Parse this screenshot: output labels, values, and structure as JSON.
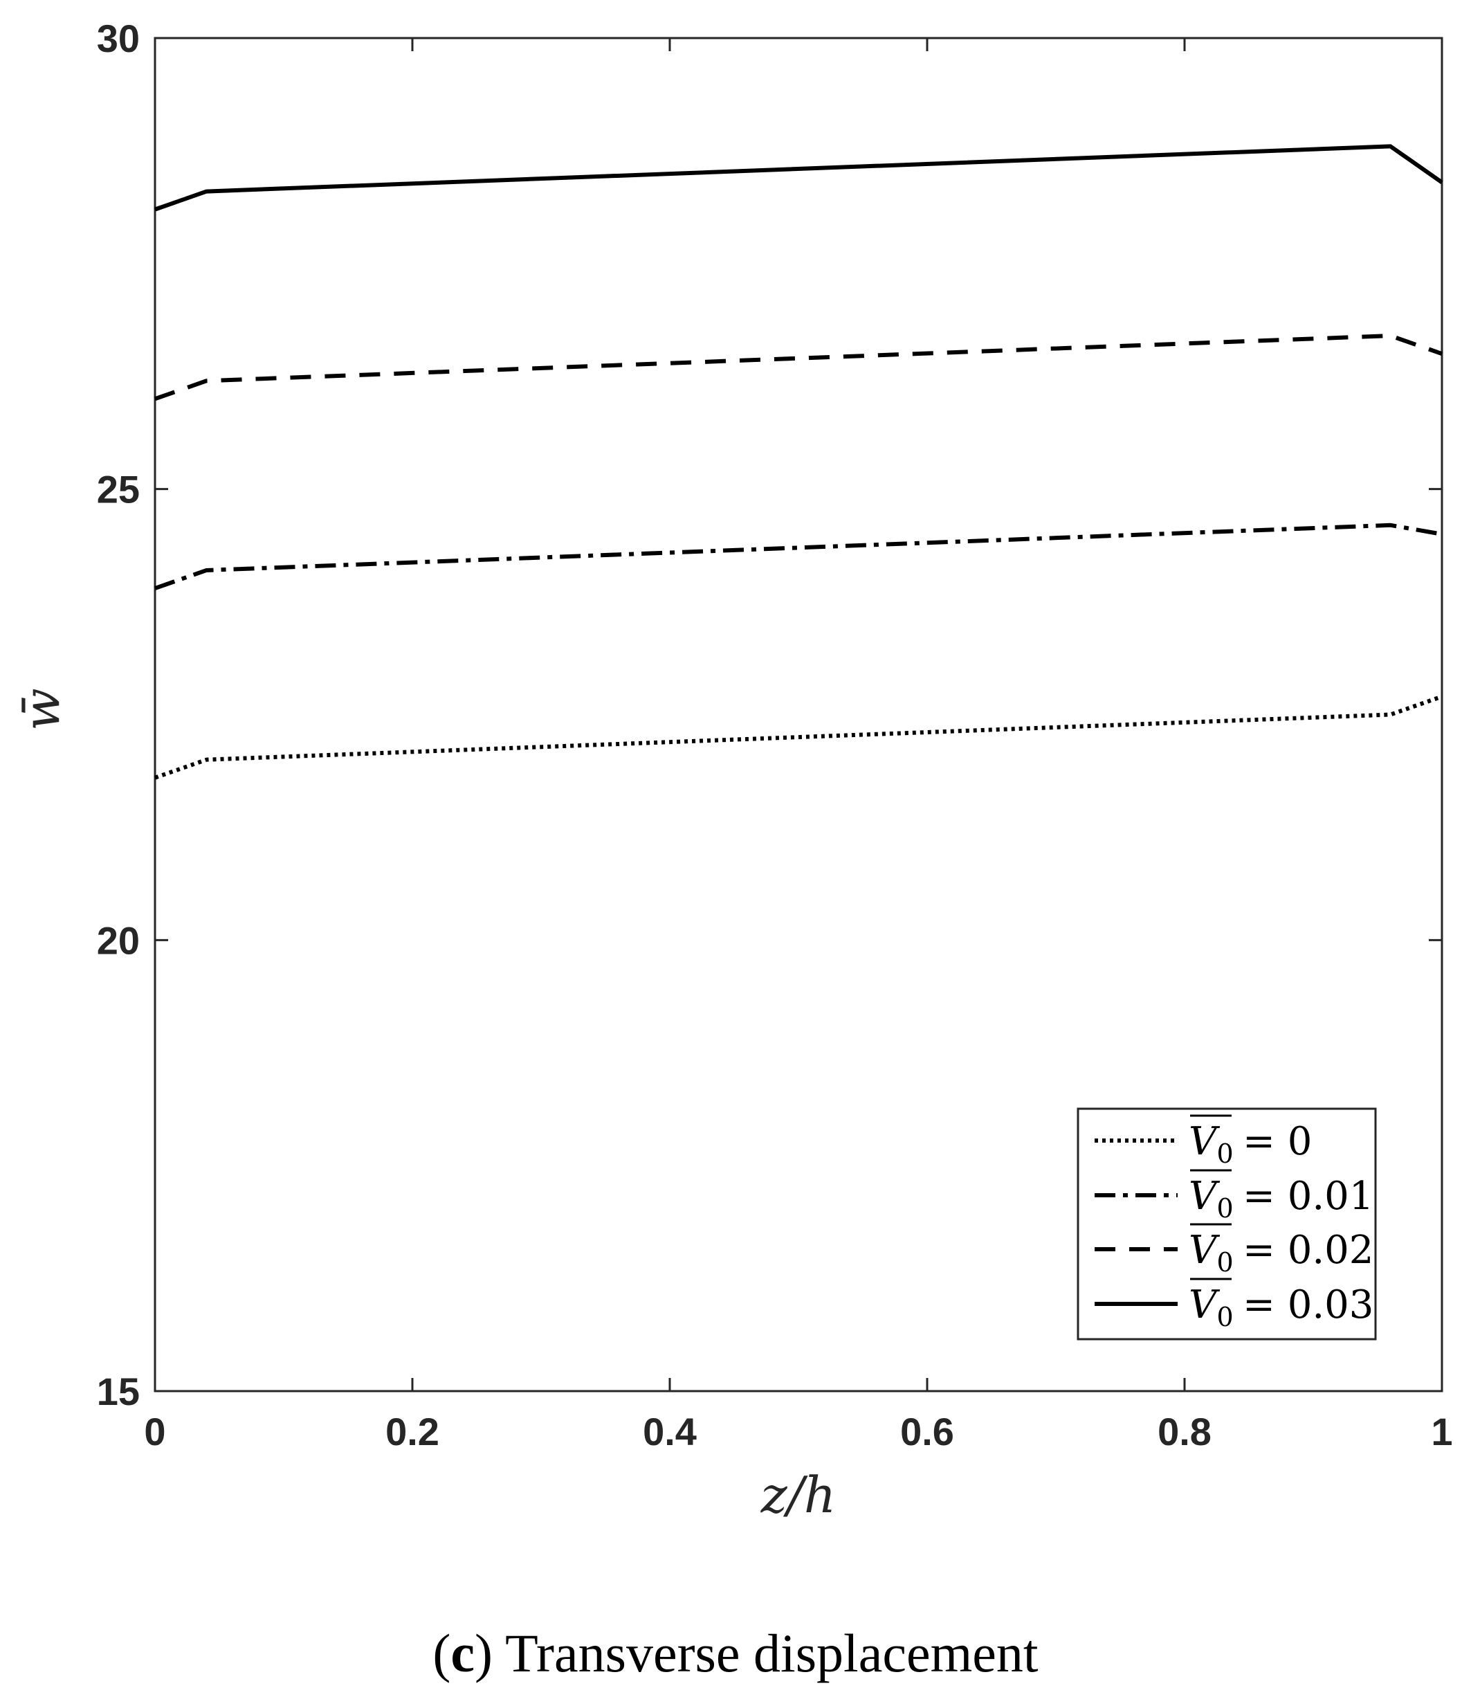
{
  "caption": {
    "letter": "c",
    "text": "Transverse displacement"
  },
  "chart_data": {
    "type": "line",
    "xlabel": "z/h",
    "ylabel": "w̄",
    "xlim": [
      0,
      1
    ],
    "ylim": [
      15,
      30
    ],
    "xticks": [
      "0",
      "0.2",
      "0.4",
      "0.6",
      "0.8",
      "1"
    ],
    "yticks": [
      "15",
      "20",
      "25",
      "30"
    ],
    "grid": false,
    "legend_position": "bottom-right",
    "x": [
      0,
      0.04,
      0.96,
      1
    ],
    "series": [
      {
        "name": "V0 = 0",
        "legend_var": "V0",
        "legend_value": "= 0",
        "dash": "dotted",
        "values": [
          21.8,
          22.0,
          22.5,
          22.7
        ]
      },
      {
        "name": "V0 = 0.01",
        "legend_var": "V0",
        "legend_value": "= 0.01",
        "dash": "dashdot",
        "values": [
          23.9,
          24.1,
          24.6,
          24.5
        ]
      },
      {
        "name": "V0 = 0.02",
        "legend_var": "V0",
        "legend_value": "= 0.02",
        "dash": "dashed",
        "values": [
          26.0,
          26.2,
          26.7,
          26.5
        ]
      },
      {
        "name": "V0 = 0.03",
        "legend_var": "V0",
        "legend_value": "= 0.03",
        "dash": "solid",
        "values": [
          28.1,
          28.3,
          28.8,
          28.4
        ]
      }
    ]
  }
}
